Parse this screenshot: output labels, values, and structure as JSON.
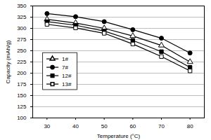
{
  "chart_data": {
    "type": "line",
    "x_label": "Temperature (°C)",
    "y_label": "Capacity (mAh/g)",
    "x": [
      30,
      40,
      50,
      60,
      70,
      80
    ],
    "series": [
      {
        "name": "1#",
        "color": "#000000",
        "marker": "triangle-open",
        "line_style": "solid",
        "values": [
          320,
          312,
          300,
          283,
          262,
          225
        ]
      },
      {
        "name": "7#",
        "color": "#000000",
        "marker": "circle",
        "line_style": "solid",
        "values": [
          333,
          326,
          315,
          297,
          278,
          245
        ]
      },
      {
        "name": "12#",
        "color": "#000000",
        "marker": "square",
        "line_style": "solid",
        "values": [
          315,
          307,
          294,
          273,
          248,
          213
        ]
      },
      {
        "name": "13#",
        "color": "#000000",
        "marker": "square-open",
        "line_style": "solid",
        "values": [
          309,
          301,
          289,
          265,
          237,
          205
        ]
      }
    ],
    "xlim": [
      25,
      85
    ],
    "xticks": [
      30,
      40,
      50,
      60,
      70,
      80
    ],
    "ylim": [
      100,
      350
    ],
    "yticks": [
      100,
      125,
      150,
      175,
      200,
      225,
      250,
      275,
      300,
      325,
      350
    ],
    "grid": true,
    "legend": "center left"
  }
}
